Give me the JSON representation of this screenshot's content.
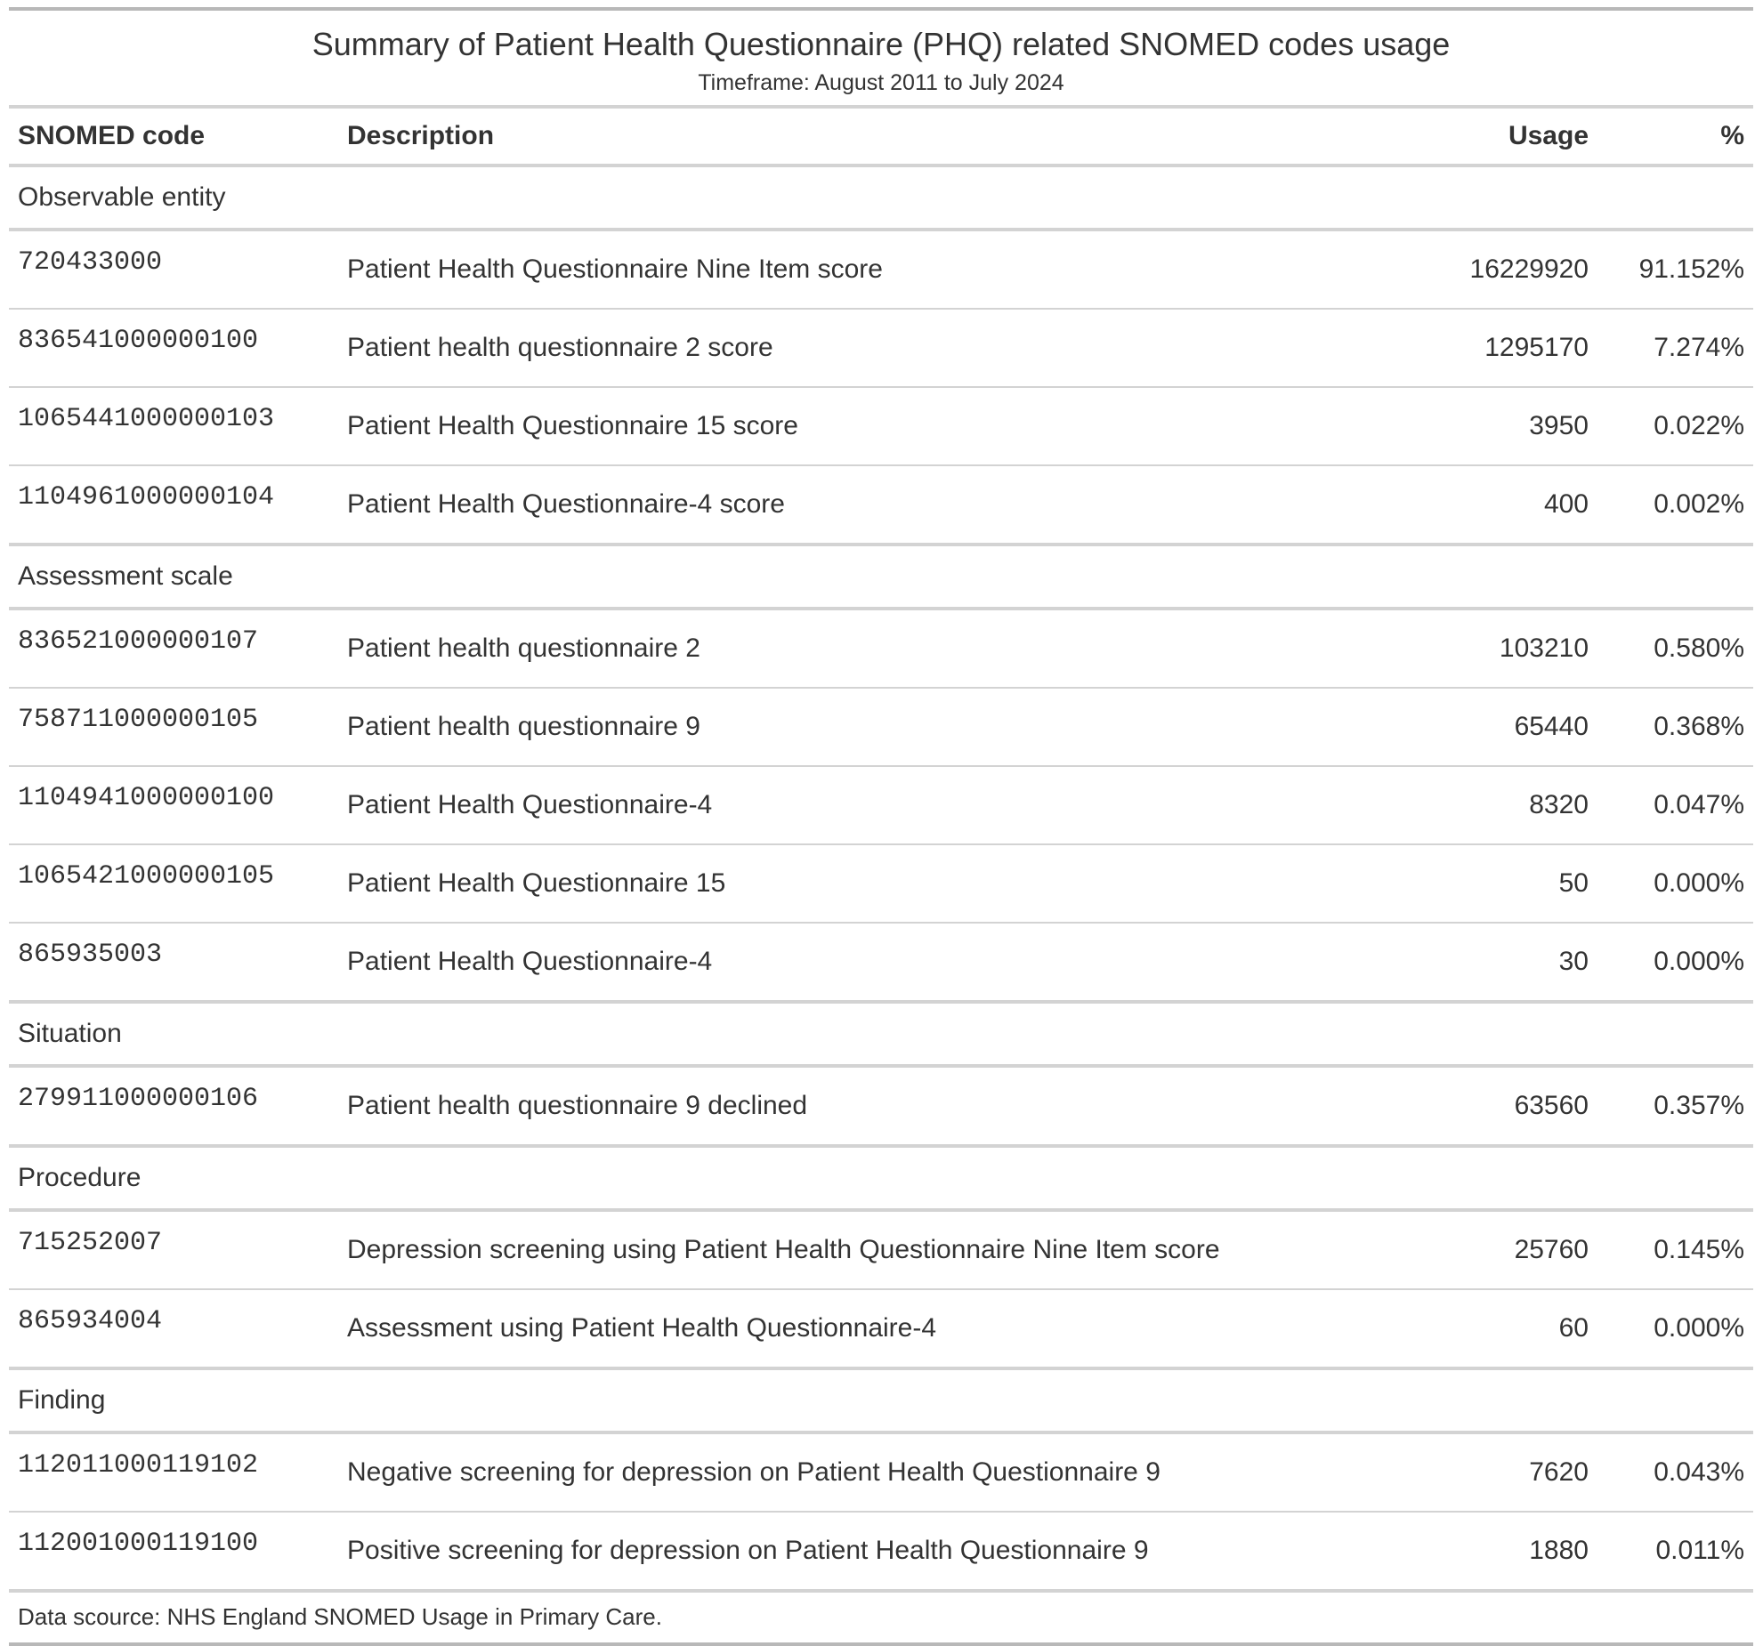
{
  "title": "Summary of Patient Health Questionnaire (PHQ) related SNOMED codes usage",
  "subtitle": "Timeframe: August 2011 to July 2024",
  "columns": {
    "code": "SNOMED code",
    "description": "Description",
    "usage": "Usage",
    "percent": "%"
  },
  "groups": [
    {
      "label": "Observable entity",
      "rows": [
        {
          "code": "720433000",
          "description": "Patient Health Questionnaire Nine Item score",
          "usage": "16229920",
          "percent": "91.152%"
        },
        {
          "code": "836541000000100",
          "description": "Patient health questionnaire 2 score",
          "usage": "1295170",
          "percent": "7.274%"
        },
        {
          "code": "1065441000000103",
          "description": "Patient Health Questionnaire 15 score",
          "usage": "3950",
          "percent": "0.022%"
        },
        {
          "code": "1104961000000104",
          "description": "Patient Health Questionnaire-4 score",
          "usage": "400",
          "percent": "0.002%"
        }
      ]
    },
    {
      "label": "Assessment scale",
      "rows": [
        {
          "code": "836521000000107",
          "description": "Patient health questionnaire 2",
          "usage": "103210",
          "percent": "0.580%"
        },
        {
          "code": "758711000000105",
          "description": "Patient health questionnaire 9",
          "usage": "65440",
          "percent": "0.368%"
        },
        {
          "code": "1104941000000100",
          "description": "Patient Health Questionnaire-4",
          "usage": "8320",
          "percent": "0.047%"
        },
        {
          "code": "1065421000000105",
          "description": "Patient Health Questionnaire 15",
          "usage": "50",
          "percent": "0.000%"
        },
        {
          "code": "865935003",
          "description": "Patient Health Questionnaire-4",
          "usage": "30",
          "percent": "0.000%"
        }
      ]
    },
    {
      "label": "Situation",
      "rows": [
        {
          "code": "279911000000106",
          "description": "Patient health questionnaire 9 declined",
          "usage": "63560",
          "percent": "0.357%"
        }
      ]
    },
    {
      "label": "Procedure",
      "rows": [
        {
          "code": "715252007",
          "description": "Depression screening using Patient Health Questionnaire Nine Item score",
          "usage": "25760",
          "percent": "0.145%"
        },
        {
          "code": "865934004",
          "description": "Assessment using Patient Health Questionnaire-4",
          "usage": "60",
          "percent": "0.000%"
        }
      ]
    },
    {
      "label": "Finding",
      "rows": [
        {
          "code": "112011000119102",
          "description": "Negative screening for depression on Patient Health Questionnaire 9",
          "usage": "7620",
          "percent": "0.043%"
        },
        {
          "code": "112001000119100",
          "description": "Positive screening for depression on Patient Health Questionnaire 9",
          "usage": "1880",
          "percent": "0.011%"
        }
      ]
    }
  ],
  "footer": "Data scource: NHS England SNOMED Usage in Primary Care."
}
